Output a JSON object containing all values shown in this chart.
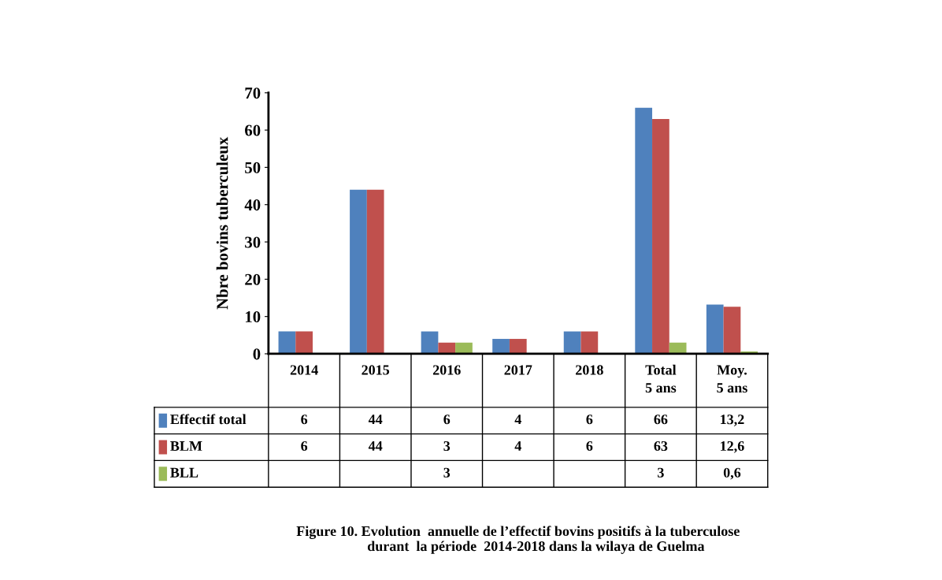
{
  "chart_data": {
    "type": "bar",
    "categories": [
      "2014",
      "2015",
      "2016",
      "2017",
      "2018",
      "Total\n5 ans",
      "Moy.\n5 ans"
    ],
    "ylabel": "Nbre bovins tuberculeux",
    "ylim": [
      0,
      70
    ],
    "yticks": [
      0,
      10,
      20,
      30,
      40,
      50,
      60,
      70
    ],
    "grid": false,
    "legend": "bottom left",
    "series": [
      {
        "name": "Effectif total",
        "color": "#4f81bd",
        "values": [
          6,
          44,
          6,
          4,
          6,
          66,
          13.2
        ],
        "value_labels": [
          "6",
          "44",
          "6",
          "4",
          "6",
          "66",
          "13,2"
        ]
      },
      {
        "name": "BLM",
        "color": "#c0504d",
        "values": [
          6,
          44,
          3,
          4,
          6,
          63,
          12.6
        ],
        "value_labels": [
          "6",
          "44",
          "3",
          "4",
          "6",
          "63",
          "12,6"
        ]
      },
      {
        "name": "BLL",
        "color": "#9bbb59",
        "values": [
          null,
          null,
          3,
          null,
          null,
          3,
          0.6
        ],
        "value_labels": [
          null,
          null,
          "3",
          null,
          null,
          "3",
          "0,6"
        ]
      }
    ],
    "annotations": [
      "Figure 10. Evolution  annuelle de l’effectif bovins positifs à la tuberculose\n          durant  la période  2014-2018 dans la wilaya de Guelma"
    ]
  }
}
